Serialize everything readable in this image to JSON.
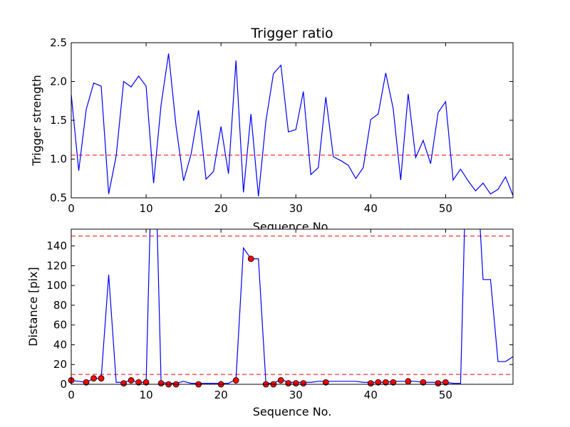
{
  "chart_data": [
    {
      "type": "line",
      "title": "Trigger ratio",
      "xlabel": "Sequence No.",
      "ylabel": "Trigger strength",
      "xlim": [
        0,
        59
      ],
      "ylim": [
        0.5,
        2.5
      ],
      "xticks": [
        0,
        10,
        20,
        30,
        40,
        50
      ],
      "yticks": [
        0.5,
        1.0,
        1.5,
        2.0,
        2.5
      ],
      "xtick_labels": [
        "0",
        "10",
        "20",
        "30",
        "40",
        "50"
      ],
      "ytick_labels": [
        "0.5",
        "1.0",
        "1.5",
        "2.0",
        "2.5"
      ],
      "line_color": "#0000ff",
      "threshold": 1.05,
      "threshold_color": "#ff0000",
      "x": [
        0,
        1,
        2,
        3,
        4,
        5,
        6,
        7,
        8,
        9,
        10,
        11,
        12,
        13,
        14,
        15,
        16,
        17,
        18,
        19,
        20,
        21,
        22,
        23,
        24,
        25,
        26,
        27,
        28,
        29,
        30,
        31,
        32,
        33,
        34,
        35,
        36,
        37,
        38,
        39,
        40,
        41,
        42,
        43,
        44,
        45,
        46,
        47,
        48,
        49,
        50,
        51,
        52,
        53,
        54,
        55,
        56,
        57,
        58,
        59
      ],
      "values": [
        1.83,
        0.85,
        1.64,
        1.98,
        1.94,
        0.55,
        1.04,
        2.0,
        1.93,
        2.07,
        1.94,
        0.69,
        1.7,
        2.36,
        1.42,
        0.72,
        1.06,
        1.63,
        0.74,
        0.84,
        1.42,
        0.81,
        2.27,
        0.57,
        1.58,
        0.52,
        1.49,
        2.1,
        2.21,
        1.35,
        1.38,
        1.87,
        0.8,
        0.89,
        1.8,
        1.03,
        0.98,
        0.92,
        0.75,
        0.89,
        1.51,
        1.58,
        2.11,
        1.65,
        0.73,
        1.84,
        1.02,
        1.24,
        0.94,
        1.6,
        1.74,
        0.73,
        0.87,
        0.72,
        0.59,
        0.69,
        0.55,
        0.61,
        0.77,
        0.53
      ]
    },
    {
      "type": "line",
      "title": "",
      "xlabel": "Sequence No.",
      "ylabel": "Distance [pix]",
      "xlim": [
        0,
        59
      ],
      "ylim": [
        0,
        157
      ],
      "xticks": [
        0,
        10,
        20,
        30,
        40,
        50
      ],
      "yticks": [
        0,
        20,
        40,
        60,
        80,
        100,
        120,
        140
      ],
      "xtick_labels": [
        "0",
        "10",
        "20",
        "30",
        "40",
        "50"
      ],
      "ytick_labels": [
        "0",
        "20",
        "40",
        "60",
        "80",
        "100",
        "120",
        "140"
      ],
      "line_color": "#0000ff",
      "thresholds": [
        10,
        150
      ],
      "threshold_color": "#ff0000",
      "marker_color": "#ff0000",
      "x": [
        0,
        1,
        2,
        3,
        4,
        5,
        6,
        7,
        8,
        9,
        10,
        11,
        12,
        13,
        14,
        15,
        16,
        17,
        18,
        19,
        20,
        21,
        22,
        23,
        24,
        25,
        26,
        27,
        28,
        29,
        30,
        31,
        32,
        33,
        34,
        35,
        36,
        37,
        38,
        39,
        40,
        41,
        42,
        43,
        44,
        45,
        46,
        47,
        48,
        49,
        50,
        51,
        52,
        53,
        54,
        55,
        56,
        57,
        58,
        59
      ],
      "values": [
        4,
        3,
        2,
        6,
        6,
        111,
        2,
        2,
        4,
        2,
        2,
        300,
        2,
        1,
        1,
        3,
        1,
        1,
        1,
        1,
        1,
        1,
        5,
        138,
        127,
        127,
        1,
        1,
        5,
        2,
        2,
        2,
        2,
        3,
        3,
        3,
        3,
        3,
        3,
        2,
        2,
        2,
        2,
        3,
        3,
        3,
        3,
        2,
        2,
        2,
        2,
        1,
        1,
        300,
        240,
        106,
        106,
        23,
        23,
        28
      ],
      "markers": [
        {
          "x": 0,
          "y": 4
        },
        {
          "x": 2,
          "y": 2
        },
        {
          "x": 3,
          "y": 6
        },
        {
          "x": 4,
          "y": 6
        },
        {
          "x": 7,
          "y": 1
        },
        {
          "x": 8,
          "y": 4
        },
        {
          "x": 9,
          "y": 2
        },
        {
          "x": 10,
          "y": 2
        },
        {
          "x": 12,
          "y": 1
        },
        {
          "x": 13,
          "y": 0
        },
        {
          "x": 14,
          "y": 0
        },
        {
          "x": 17,
          "y": 0
        },
        {
          "x": 20,
          "y": 0
        },
        {
          "x": 22,
          "y": 4
        },
        {
          "x": 24,
          "y": 127
        },
        {
          "x": 26,
          "y": 0
        },
        {
          "x": 27,
          "y": 0
        },
        {
          "x": 28,
          "y": 4
        },
        {
          "x": 29,
          "y": 1
        },
        {
          "x": 30,
          "y": 1
        },
        {
          "x": 31,
          "y": 1
        },
        {
          "x": 34,
          "y": 2
        },
        {
          "x": 40,
          "y": 1
        },
        {
          "x": 41,
          "y": 2
        },
        {
          "x": 42,
          "y": 2
        },
        {
          "x": 43,
          "y": 2
        },
        {
          "x": 45,
          "y": 3
        },
        {
          "x": 47,
          "y": 2
        },
        {
          "x": 49,
          "y": 1
        },
        {
          "x": 50,
          "y": 2
        }
      ]
    }
  ]
}
